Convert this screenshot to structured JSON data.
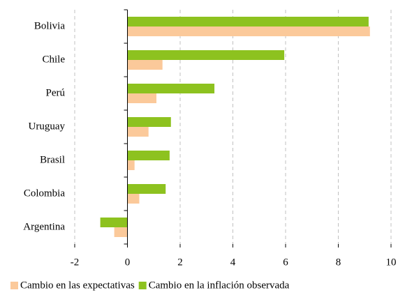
{
  "chart_data": {
    "type": "hbar",
    "categories": [
      "Bolivia",
      "Chile",
      "Perú",
      "Uruguay",
      "Brasil",
      "Colombia",
      "Argentina"
    ],
    "series": [
      {
        "name": "Cambio en las expectativas",
        "color": "#fbc99a",
        "values": [
          9.2,
          1.33,
          1.1,
          0.8,
          0.27,
          0.45,
          -0.5
        ]
      },
      {
        "name": "Cambio en la inflación observada",
        "color": "#8dc21f",
        "values": [
          9.15,
          5.95,
          3.3,
          1.65,
          1.6,
          1.45,
          -1.03
        ]
      }
    ],
    "xlim": [
      -2,
      10
    ],
    "xticks": [
      -2,
      0,
      2,
      4,
      6,
      8,
      10
    ],
    "grid": true,
    "legend": "bottom"
  }
}
